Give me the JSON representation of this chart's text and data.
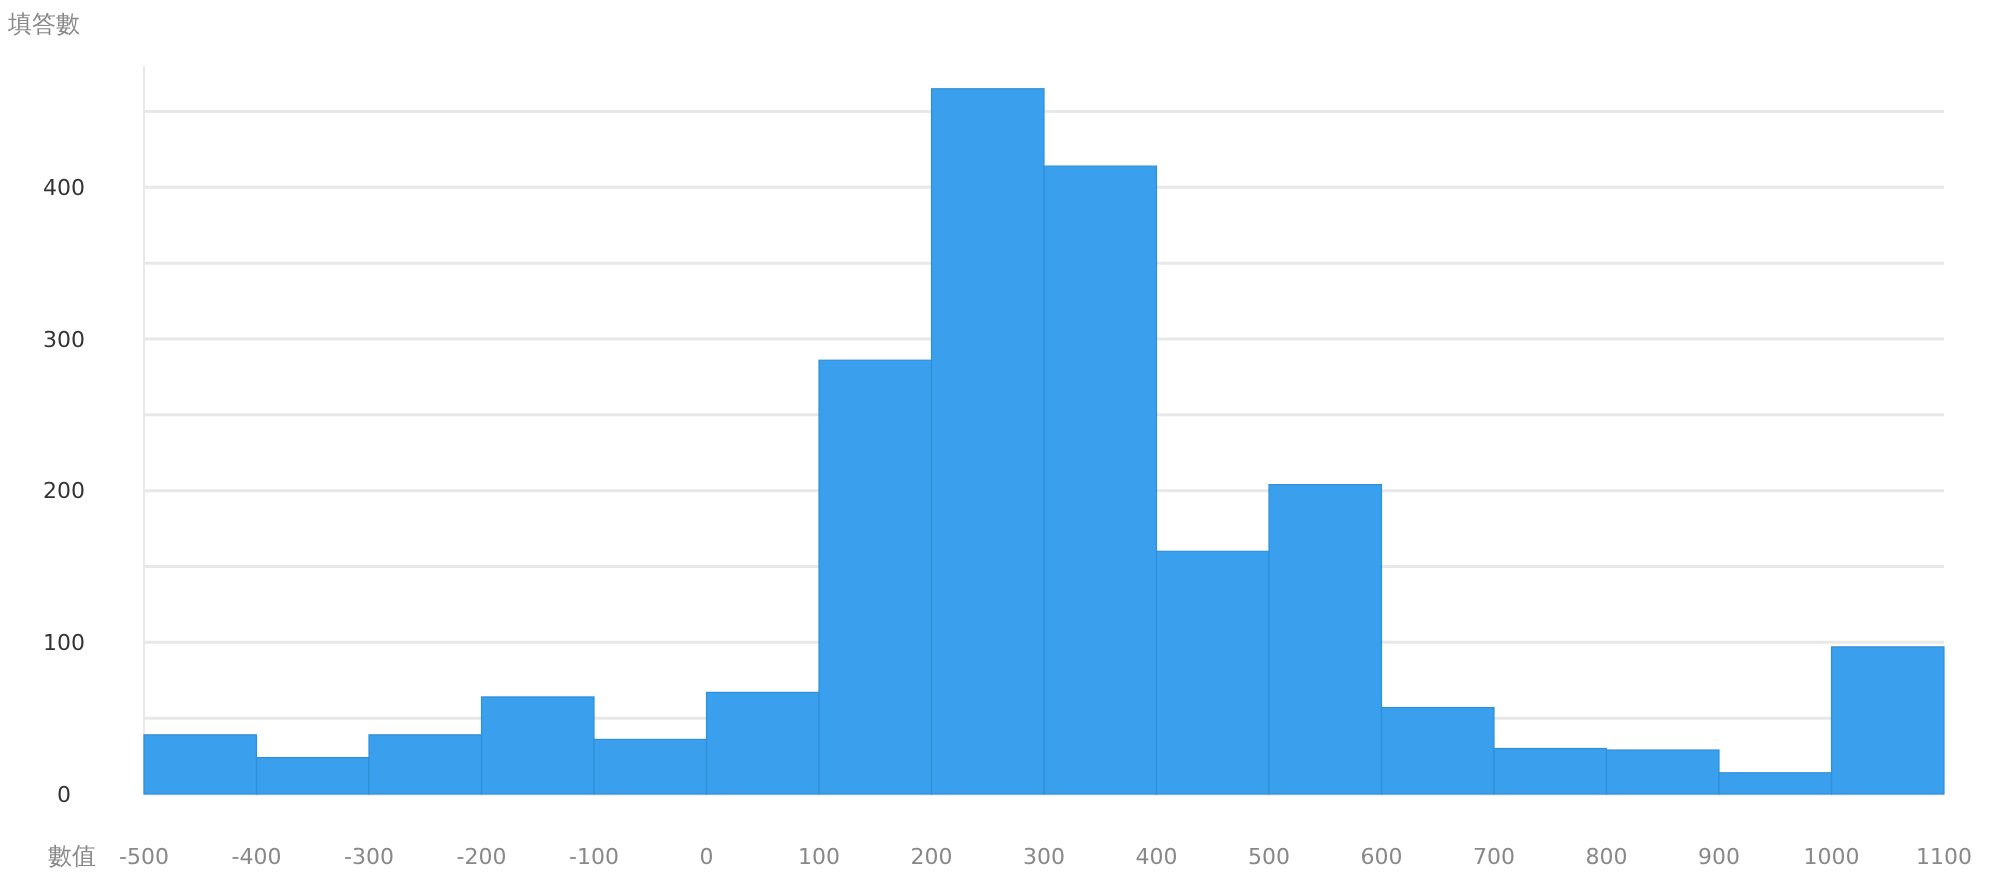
{
  "chart_data": {
    "type": "histogram",
    "xlabel": "數值",
    "ylabel": "填答數",
    "bins": [
      -500,
      -400,
      -300,
      -200,
      -100,
      0,
      100,
      200,
      300,
      400,
      500,
      600,
      700,
      800,
      900,
      1000,
      1100
    ],
    "values": [
      39,
      24,
      39,
      64,
      36,
      67,
      286,
      465,
      414,
      160,
      204,
      57,
      30,
      29,
      14,
      97
    ],
    "color": "#3a9fec",
    "xlim": [
      -500,
      1100
    ],
    "xticks": [
      -500,
      -400,
      -300,
      -200,
      -100,
      0,
      100,
      200,
      300,
      400,
      500,
      600,
      700,
      800,
      900,
      1000,
      1100
    ],
    "ylim": [
      0,
      480
    ],
    "yticks": [
      0,
      {
        "value": 50,
        "label": null
      },
      100,
      {
        "value": 150,
        "label": null
      },
      200,
      {
        "value": 250,
        "label": null
      },
      300,
      {
        "value": 350,
        "label": null
      },
      400,
      {
        "value": 450,
        "label": null
      }
    ],
    "grid": "y"
  }
}
